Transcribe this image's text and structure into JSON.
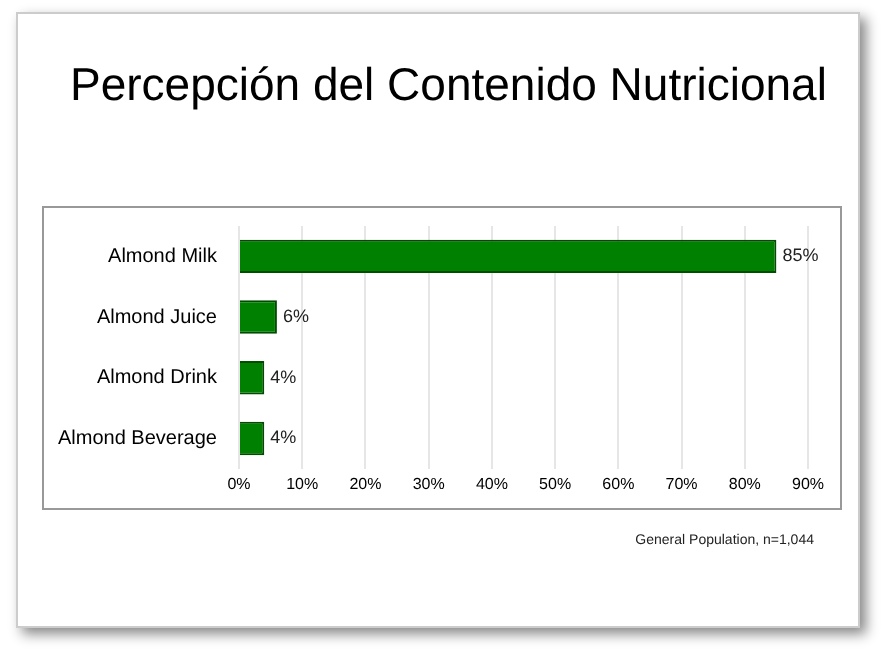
{
  "chart_data": {
    "type": "bar",
    "orientation": "horizontal",
    "title": "Percepción del Contenido Nutricional",
    "categories": [
      "Almond Milk",
      "Almond Juice",
      "Almond Drink",
      "Almond Beverage"
    ],
    "values": [
      85,
      6,
      4,
      4
    ],
    "value_labels": [
      "85%",
      "6%",
      "4%",
      "4%"
    ],
    "color": "#008000",
    "xlim": [
      0,
      90
    ],
    "xticks": [
      {
        "value": 0,
        "label": "0%"
      },
      {
        "value": 10,
        "label": "10%"
      },
      {
        "value": 20,
        "label": "20%"
      },
      {
        "value": 30,
        "label": "30%"
      },
      {
        "value": 40,
        "label": "40%"
      },
      {
        "value": 50,
        "label": "50%"
      },
      {
        "value": 60,
        "label": "60%"
      },
      {
        "value": 70,
        "label": "70%"
      },
      {
        "value": 80,
        "label": "80%"
      },
      {
        "value": 90,
        "label": "90%"
      }
    ],
    "grid": "x",
    "legend": false,
    "annotations": [
      "General Population, n=1,044"
    ]
  }
}
